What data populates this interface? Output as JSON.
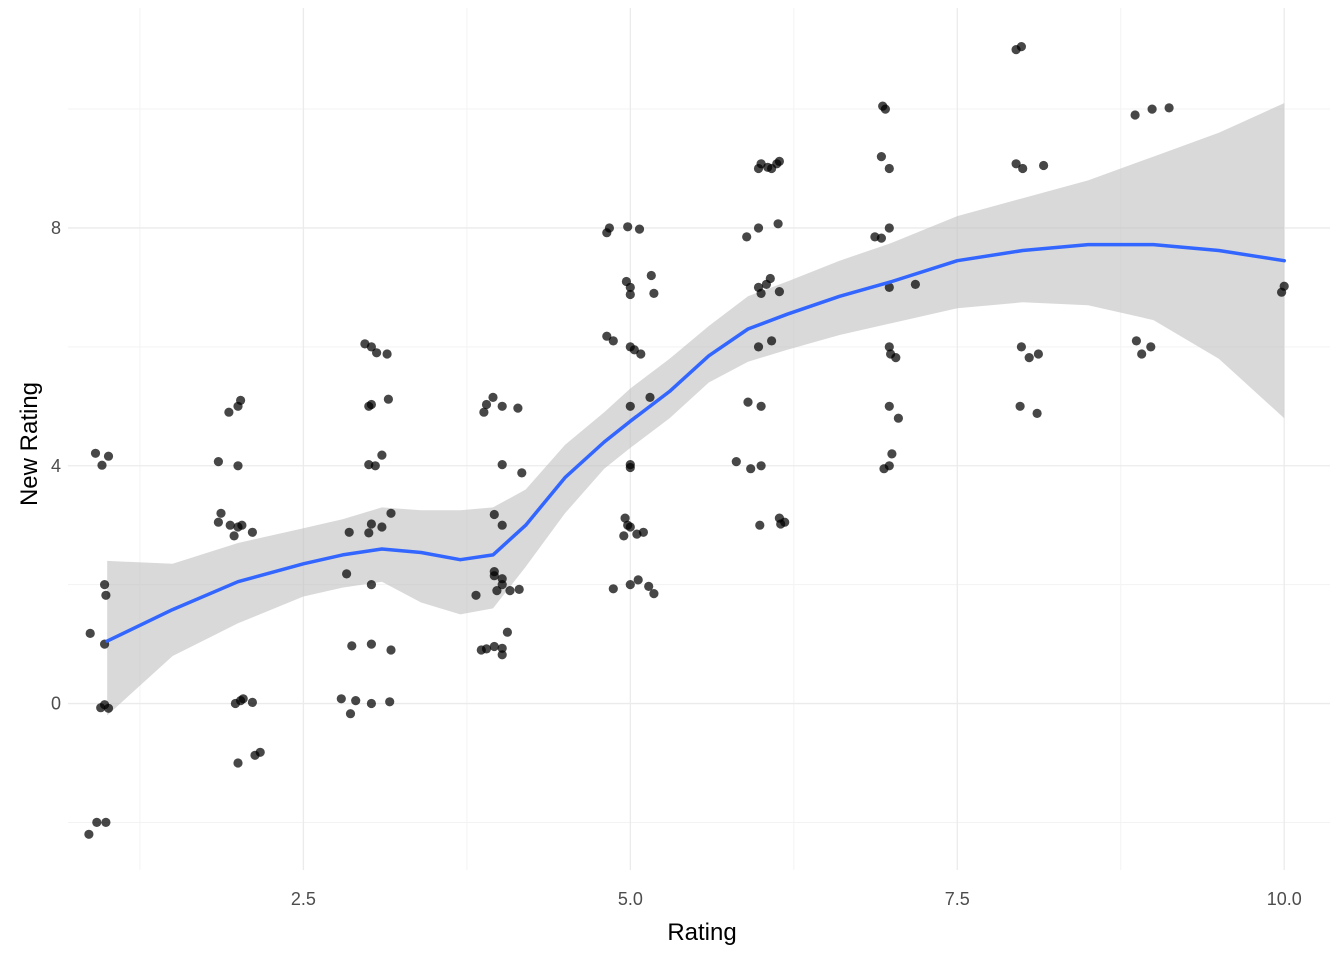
{
  "chart_data": {
    "type": "scatter",
    "title": "",
    "xlabel": "Rating",
    "ylabel": "New Rating",
    "xlim": [
      0.7,
      10.35
    ],
    "ylim": [
      -2.8,
      11.7
    ],
    "x_ticks": [
      2.5,
      5.0,
      7.5,
      10.0
    ],
    "x_tick_labels": [
      "2.5",
      "5.0",
      "7.5",
      "10.0"
    ],
    "y_ticks": [
      0,
      4,
      8
    ],
    "y_tick_labels": [
      "0",
      "4",
      "8"
    ],
    "grid": true,
    "legend": "none",
    "colors": {
      "points": "#000000",
      "smooth_line": "#3366ff",
      "confidence_band": "#bfbfbf",
      "grid": "#ebebeb"
    },
    "points": [
      {
        "x": 0.87,
        "y": 1.18
      },
      {
        "x": 0.91,
        "y": 4.21
      },
      {
        "x": 0.96,
        "y": 4.01
      },
      {
        "x": 1.01,
        "y": 4.16
      },
      {
        "x": 0.98,
        "y": 2.0
      },
      {
        "x": 0.99,
        "y": 1.82
      },
      {
        "x": 0.98,
        "y": 1.0
      },
      {
        "x": 0.95,
        "y": -0.07
      },
      {
        "x": 0.98,
        "y": -0.02
      },
      {
        "x": 1.01,
        "y": -0.08
      },
      {
        "x": 0.92,
        "y": -2.0
      },
      {
        "x": 0.99,
        "y": -2.0
      },
      {
        "x": 0.86,
        "y": -2.2
      },
      {
        "x": 1.85,
        "y": 4.07
      },
      {
        "x": 2.0,
        "y": 4.0
      },
      {
        "x": 1.93,
        "y": 4.9
      },
      {
        "x": 2.0,
        "y": 5.0
      },
      {
        "x": 2.02,
        "y": 5.1
      },
      {
        "x": 1.87,
        "y": 3.2
      },
      {
        "x": 1.85,
        "y": 3.05
      },
      {
        "x": 1.94,
        "y": 3.0
      },
      {
        "x": 2.0,
        "y": 2.97
      },
      {
        "x": 2.03,
        "y": 3.0
      },
      {
        "x": 1.97,
        "y": 2.82
      },
      {
        "x": 2.11,
        "y": 2.88
      },
      {
        "x": 1.98,
        "y": 0.0
      },
      {
        "x": 2.02,
        "y": 0.05
      },
      {
        "x": 2.04,
        "y": 0.08
      },
      {
        "x": 2.11,
        "y": 0.02
      },
      {
        "x": 2.0,
        "y": -1.0
      },
      {
        "x": 2.13,
        "y": -0.87
      },
      {
        "x": 2.17,
        "y": -0.82
      },
      {
        "x": 2.97,
        "y": 6.05
      },
      {
        "x": 3.02,
        "y": 6.0
      },
      {
        "x": 3.06,
        "y": 5.9
      },
      {
        "x": 3.14,
        "y": 5.88
      },
      {
        "x": 3.0,
        "y": 5.0
      },
      {
        "x": 3.02,
        "y": 5.03
      },
      {
        "x": 3.15,
        "y": 5.12
      },
      {
        "x": 3.0,
        "y": 4.02
      },
      {
        "x": 3.05,
        "y": 4.0
      },
      {
        "x": 3.1,
        "y": 4.18
      },
      {
        "x": 3.02,
        "y": 3.02
      },
      {
        "x": 3.1,
        "y": 2.97
      },
      {
        "x": 3.17,
        "y": 3.2
      },
      {
        "x": 2.85,
        "y": 2.88
      },
      {
        "x": 3.0,
        "y": 2.87
      },
      {
        "x": 2.83,
        "y": 2.18
      },
      {
        "x": 3.02,
        "y": 2.0
      },
      {
        "x": 2.87,
        "y": 0.97
      },
      {
        "x": 3.02,
        "y": 1.0
      },
      {
        "x": 3.17,
        "y": 0.9
      },
      {
        "x": 2.79,
        "y": 0.08
      },
      {
        "x": 2.9,
        "y": 0.05
      },
      {
        "x": 3.02,
        "y": 0.0
      },
      {
        "x": 3.16,
        "y": 0.03
      },
      {
        "x": 2.86,
        "y": -0.17
      },
      {
        "x": 3.9,
        "y": 5.03
      },
      {
        "x": 3.88,
        "y": 4.9
      },
      {
        "x": 3.95,
        "y": 5.15
      },
      {
        "x": 4.02,
        "y": 5.0
      },
      {
        "x": 4.14,
        "y": 4.97
      },
      {
        "x": 4.02,
        "y": 4.02
      },
      {
        "x": 4.17,
        "y": 3.88
      },
      {
        "x": 3.96,
        "y": 3.18
      },
      {
        "x": 4.02,
        "y": 3.0
      },
      {
        "x": 3.96,
        "y": 2.22
      },
      {
        "x": 3.96,
        "y": 2.15
      },
      {
        "x": 4.02,
        "y": 2.1
      },
      {
        "x": 4.02,
        "y": 2.0
      },
      {
        "x": 3.98,
        "y": 1.9
      },
      {
        "x": 4.08,
        "y": 1.9
      },
      {
        "x": 4.15,
        "y": 1.92
      },
      {
        "x": 3.82,
        "y": 1.82
      },
      {
        "x": 3.86,
        "y": 0.9
      },
      {
        "x": 3.9,
        "y": 0.92
      },
      {
        "x": 3.96,
        "y": 0.96
      },
      {
        "x": 4.02,
        "y": 0.93
      },
      {
        "x": 4.02,
        "y": 0.82
      },
      {
        "x": 4.06,
        "y": 1.2
      },
      {
        "x": 4.82,
        "y": 7.92
      },
      {
        "x": 4.84,
        "y": 8.0
      },
      {
        "x": 4.98,
        "y": 8.02
      },
      {
        "x": 5.07,
        "y": 7.98
      },
      {
        "x": 4.97,
        "y": 7.1
      },
      {
        "x": 5.0,
        "y": 7.0
      },
      {
        "x": 5.0,
        "y": 6.88
      },
      {
        "x": 5.16,
        "y": 7.2
      },
      {
        "x": 5.18,
        "y": 6.9
      },
      {
        "x": 4.82,
        "y": 6.18
      },
      {
        "x": 4.87,
        "y": 6.1
      },
      {
        "x": 5.0,
        "y": 6.0
      },
      {
        "x": 5.03,
        "y": 5.95
      },
      {
        "x": 5.08,
        "y": 5.88
      },
      {
        "x": 5.0,
        "y": 5.0
      },
      {
        "x": 5.15,
        "y": 5.15
      },
      {
        "x": 5.0,
        "y": 4.02
      },
      {
        "x": 5.0,
        "y": 3.97
      },
      {
        "x": 4.96,
        "y": 3.12
      },
      {
        "x": 4.98,
        "y": 3.0
      },
      {
        "x": 5.0,
        "y": 2.97
      },
      {
        "x": 5.05,
        "y": 2.85
      },
      {
        "x": 5.1,
        "y": 2.88
      },
      {
        "x": 4.95,
        "y": 2.82
      },
      {
        "x": 4.87,
        "y": 1.93
      },
      {
        "x": 5.0,
        "y": 2.0
      },
      {
        "x": 5.06,
        "y": 2.08
      },
      {
        "x": 5.14,
        "y": 1.97
      },
      {
        "x": 5.18,
        "y": 1.85
      },
      {
        "x": 5.89,
        "y": 7.85
      },
      {
        "x": 5.98,
        "y": 8.0
      },
      {
        "x": 6.13,
        "y": 8.07
      },
      {
        "x": 5.98,
        "y": 9.0
      },
      {
        "x": 6.0,
        "y": 9.08
      },
      {
        "x": 6.05,
        "y": 9.02
      },
      {
        "x": 6.08,
        "y": 9.0
      },
      {
        "x": 6.12,
        "y": 9.08
      },
      {
        "x": 6.14,
        "y": 9.12
      },
      {
        "x": 5.98,
        "y": 7.0
      },
      {
        "x": 6.0,
        "y": 6.9
      },
      {
        "x": 6.04,
        "y": 7.05
      },
      {
        "x": 6.07,
        "y": 7.15
      },
      {
        "x": 6.14,
        "y": 6.93
      },
      {
        "x": 6.08,
        "y": 6.1
      },
      {
        "x": 5.98,
        "y": 6.0
      },
      {
        "x": 5.9,
        "y": 5.07
      },
      {
        "x": 6.0,
        "y": 5.0
      },
      {
        "x": 5.81,
        "y": 4.07
      },
      {
        "x": 5.92,
        "y": 3.95
      },
      {
        "x": 6.0,
        "y": 4.0
      },
      {
        "x": 5.99,
        "y": 3.0
      },
      {
        "x": 6.14,
        "y": 3.12
      },
      {
        "x": 6.18,
        "y": 3.05
      },
      {
        "x": 6.15,
        "y": 3.02
      },
      {
        "x": 6.93,
        "y": 10.05
      },
      {
        "x": 6.95,
        "y": 10.0
      },
      {
        "x": 6.92,
        "y": 9.2
      },
      {
        "x": 6.98,
        "y": 9.0
      },
      {
        "x": 6.87,
        "y": 7.85
      },
      {
        "x": 6.92,
        "y": 7.83
      },
      {
        "x": 6.98,
        "y": 8.0
      },
      {
        "x": 6.98,
        "y": 7.0
      },
      {
        "x": 7.18,
        "y": 7.05
      },
      {
        "x": 6.98,
        "y": 6.0
      },
      {
        "x": 6.99,
        "y": 5.88
      },
      {
        "x": 7.03,
        "y": 5.82
      },
      {
        "x": 6.98,
        "y": 5.0
      },
      {
        "x": 7.05,
        "y": 4.8
      },
      {
        "x": 7.0,
        "y": 4.2
      },
      {
        "x": 6.94,
        "y": 3.95
      },
      {
        "x": 6.98,
        "y": 4.0
      },
      {
        "x": 7.95,
        "y": 11.0
      },
      {
        "x": 7.99,
        "y": 11.05
      },
      {
        "x": 7.95,
        "y": 9.08
      },
      {
        "x": 8.0,
        "y": 9.0
      },
      {
        "x": 8.16,
        "y": 9.05
      },
      {
        "x": 7.99,
        "y": 6.0
      },
      {
        "x": 8.05,
        "y": 5.82
      },
      {
        "x": 8.12,
        "y": 5.88
      },
      {
        "x": 7.98,
        "y": 5.0
      },
      {
        "x": 8.11,
        "y": 4.88
      },
      {
        "x": 8.86,
        "y": 9.9
      },
      {
        "x": 8.99,
        "y": 10.0
      },
      {
        "x": 9.12,
        "y": 10.02
      },
      {
        "x": 8.87,
        "y": 6.1
      },
      {
        "x": 8.91,
        "y": 5.88
      },
      {
        "x": 8.98,
        "y": 6.0
      },
      {
        "x": 9.98,
        "y": 6.92
      },
      {
        "x": 10.0,
        "y": 7.02
      }
    ],
    "smooth_line": [
      {
        "x": 1.0,
        "y": 1.05
      },
      {
        "x": 1.5,
        "y": 1.58
      },
      {
        "x": 2.0,
        "y": 2.05
      },
      {
        "x": 2.5,
        "y": 2.35
      },
      {
        "x": 2.8,
        "y": 2.5
      },
      {
        "x": 3.1,
        "y": 2.6
      },
      {
        "x": 3.4,
        "y": 2.54
      },
      {
        "x": 3.7,
        "y": 2.42
      },
      {
        "x": 3.95,
        "y": 2.5
      },
      {
        "x": 4.2,
        "y": 3.0
      },
      {
        "x": 4.5,
        "y": 3.8
      },
      {
        "x": 4.8,
        "y": 4.4
      },
      {
        "x": 5.0,
        "y": 4.75
      },
      {
        "x": 5.3,
        "y": 5.25
      },
      {
        "x": 5.6,
        "y": 5.85
      },
      {
        "x": 5.9,
        "y": 6.3
      },
      {
        "x": 6.2,
        "y": 6.55
      },
      {
        "x": 6.6,
        "y": 6.85
      },
      {
        "x": 7.0,
        "y": 7.1
      },
      {
        "x": 7.5,
        "y": 7.45
      },
      {
        "x": 8.0,
        "y": 7.62
      },
      {
        "x": 8.5,
        "y": 7.72
      },
      {
        "x": 9.0,
        "y": 7.72
      },
      {
        "x": 9.5,
        "y": 7.62
      },
      {
        "x": 10.0,
        "y": 7.45
      }
    ],
    "confidence_band": [
      {
        "x": 1.0,
        "lower": -0.2,
        "upper": 2.4
      },
      {
        "x": 1.5,
        "lower": 0.8,
        "upper": 2.35
      },
      {
        "x": 2.0,
        "lower": 1.35,
        "upper": 2.7
      },
      {
        "x": 2.5,
        "lower": 1.8,
        "upper": 2.95
      },
      {
        "x": 2.8,
        "lower": 1.95,
        "upper": 3.1
      },
      {
        "x": 3.1,
        "lower": 2.05,
        "upper": 3.3
      },
      {
        "x": 3.4,
        "lower": 1.7,
        "upper": 3.25
      },
      {
        "x": 3.7,
        "lower": 1.5,
        "upper": 3.25
      },
      {
        "x": 3.95,
        "lower": 1.6,
        "upper": 3.3
      },
      {
        "x": 4.2,
        "lower": 2.3,
        "upper": 3.6
      },
      {
        "x": 4.5,
        "lower": 3.2,
        "upper": 4.35
      },
      {
        "x": 4.8,
        "lower": 3.95,
        "upper": 4.9
      },
      {
        "x": 5.0,
        "lower": 4.3,
        "upper": 5.3
      },
      {
        "x": 5.3,
        "lower": 4.8,
        "upper": 5.8
      },
      {
        "x": 5.6,
        "lower": 5.4,
        "upper": 6.35
      },
      {
        "x": 5.9,
        "lower": 5.75,
        "upper": 6.85
      },
      {
        "x": 6.2,
        "lower": 5.95,
        "upper": 7.1
      },
      {
        "x": 6.6,
        "lower": 6.2,
        "upper": 7.45
      },
      {
        "x": 7.0,
        "lower": 6.4,
        "upper": 7.75
      },
      {
        "x": 7.5,
        "lower": 6.65,
        "upper": 8.2
      },
      {
        "x": 8.0,
        "lower": 6.75,
        "upper": 8.5
      },
      {
        "x": 8.5,
        "lower": 6.7,
        "upper": 8.8
      },
      {
        "x": 9.0,
        "lower": 6.45,
        "upper": 9.2
      },
      {
        "x": 9.5,
        "lower": 5.8,
        "upper": 9.6
      },
      {
        "x": 10.0,
        "lower": 4.8,
        "upper": 10.1
      }
    ]
  }
}
